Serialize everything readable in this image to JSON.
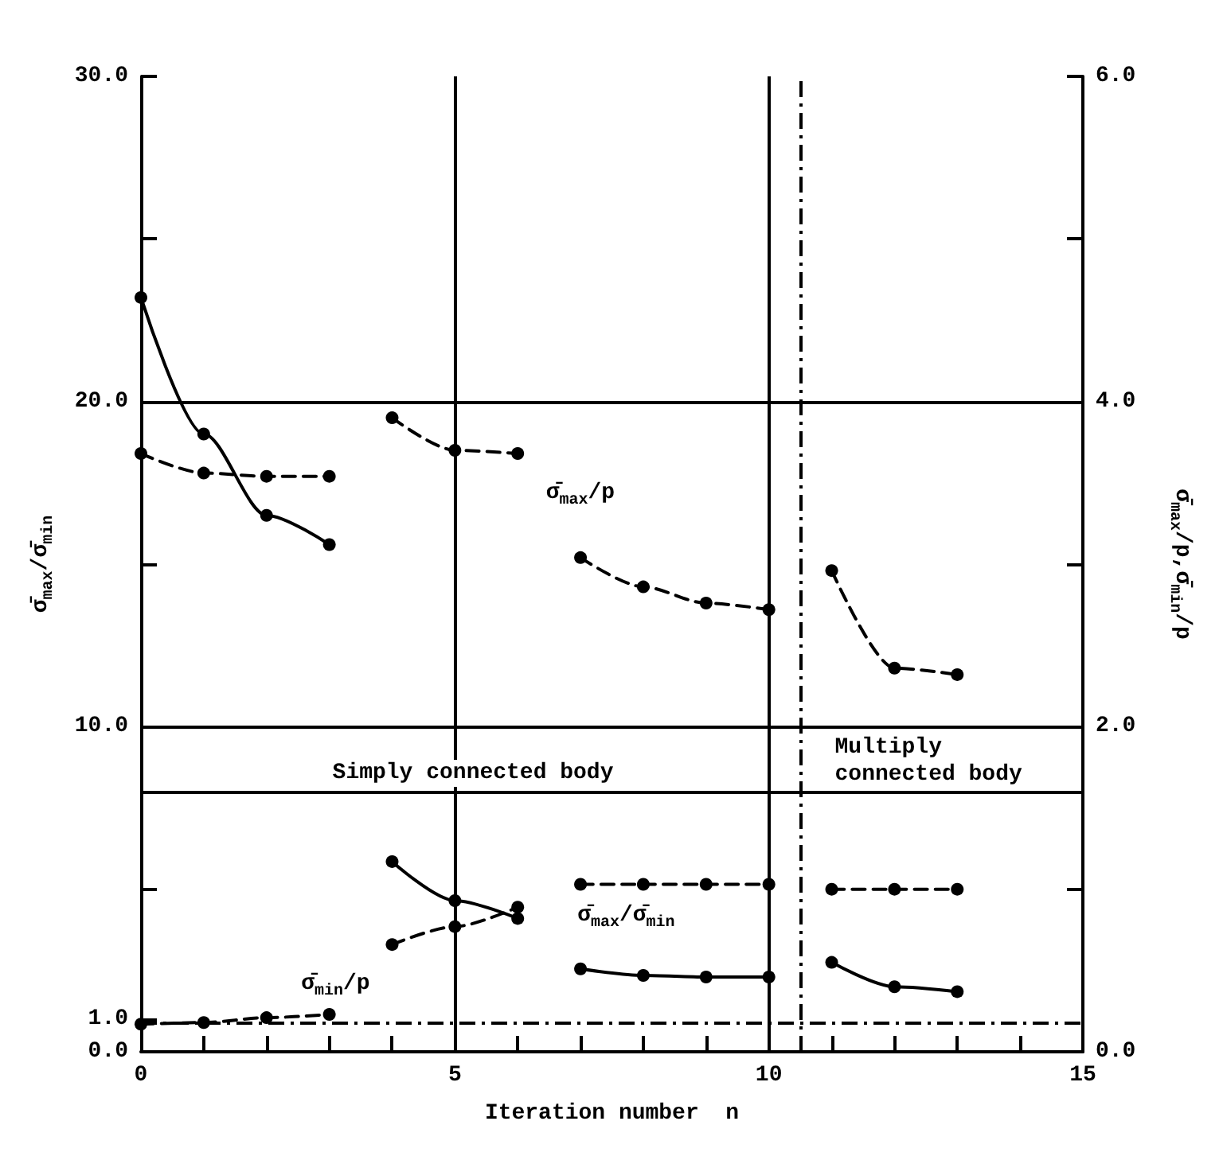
{
  "chart_data": {
    "type": "line",
    "xlabel": "Iteration number  n",
    "ylabel": "σ̄$_{max}$/σ̄$_{min}$",
    "y2label": "σ̄$_{max}$/p,σ̄$_{min}$/p",
    "xlim": [
      0,
      15
    ],
    "xticks": [
      0,
      {
        "value": 1,
        "label": null
      },
      {
        "value": 2,
        "label": null
      },
      {
        "value": 3,
        "label": null
      },
      {
        "value": 4,
        "label": null
      },
      5,
      {
        "value": 6,
        "label": null
      },
      {
        "value": 7,
        "label": null
      },
      {
        "value": 8,
        "label": null
      },
      {
        "value": 9,
        "label": null
      },
      10,
      {
        "value": 11,
        "label": null
      },
      {
        "value": 12,
        "label": null
      },
      {
        "value": 13,
        "label": null
      },
      {
        "value": 14,
        "label": null
      },
      15
    ],
    "ylim": [
      0,
      30
    ],
    "yticks": [
      {
        "value": 0,
        "label": "0.0"
      },
      {
        "value": 1,
        "label": "1.0"
      },
      {
        "value": 5,
        "label": null
      },
      {
        "value": 10,
        "label": "10.0"
      },
      {
        "value": 15,
        "label": null
      },
      {
        "value": 20,
        "label": "20.0"
      },
      {
        "value": 25,
        "label": null
      },
      {
        "value": 30,
        "label": "30.0"
      }
    ],
    "y2lim": [
      0,
      6
    ],
    "y2ticks": [
      {
        "value": 0,
        "label": "0.0"
      },
      {
        "value": 1,
        "label": null
      },
      {
        "value": 2,
        "label": "2.0"
      },
      {
        "value": 3,
        "label": null
      },
      {
        "value": 4,
        "label": "4.0"
      },
      {
        "value": 5,
        "label": null
      },
      {
        "value": 6,
        "label": "6.0"
      }
    ],
    "grid": false,
    "marker": "circle",
    "series": [
      {
        "color": "#000000",
        "line_style": "solid",
        "x": [
          0,
          1,
          2,
          3
        ],
        "values": [
          23.2,
          19.0,
          16.5,
          15.6
        ]
      },
      {
        "color": "#000000",
        "line_style": "dashed",
        "axis": "y2",
        "x": [
          0,
          1,
          2,
          3
        ],
        "values": [
          3.68,
          3.56,
          3.54,
          3.54
        ]
      },
      {
        "color": "#000000",
        "line_style": "dashed",
        "axis": "y2",
        "x": [
          4,
          5,
          6
        ],
        "values": [
          3.9,
          3.7,
          3.68
        ]
      },
      {
        "color": "#000000",
        "line_style": "dashed",
        "axis": "y2",
        "x": [
          7,
          8,
          9,
          10
        ],
        "values": [
          3.04,
          2.86,
          2.76,
          2.72
        ]
      },
      {
        "color": "#000000",
        "line_style": "dashed",
        "axis": "y2",
        "x": [
          11,
          12,
          13
        ],
        "values": [
          2.96,
          2.36,
          2.32
        ]
      },
      {
        "color": "#000000",
        "line_style": "solid",
        "x": [
          4,
          5,
          6
        ],
        "values": [
          5.85,
          4.65,
          4.1
        ]
      },
      {
        "color": "#000000",
        "line_style": "dashed",
        "axis": "y2",
        "x": [
          4,
          5,
          6
        ],
        "values": [
          0.66,
          0.77,
          0.89
        ]
      },
      {
        "color": "#000000",
        "line_style": "dashed",
        "axis": "y2",
        "x": [
          7,
          8,
          9,
          10
        ],
        "values": [
          1.03,
          1.03,
          1.03,
          1.03
        ]
      },
      {
        "color": "#000000",
        "line_style": "dashed",
        "axis": "y2",
        "x": [
          11,
          12,
          13
        ],
        "values": [
          1.0,
          1.0,
          1.0
        ]
      },
      {
        "color": "#000000",
        "line_style": "solid",
        "x": [
          7,
          8,
          9,
          10
        ],
        "values": [
          2.55,
          2.35,
          2.3,
          2.3
        ]
      },
      {
        "color": "#000000",
        "line_style": "solid",
        "x": [
          11,
          12,
          13
        ],
        "values": [
          2.75,
          2.0,
          1.85
        ]
      },
      {
        "color": "#000000",
        "line_style": "dashed",
        "axis": "y2",
        "x": [
          0,
          1,
          2,
          3
        ],
        "values": [
          0.17,
          0.18,
          0.21,
          0.23
        ]
      }
    ],
    "ref_lines": [
      {
        "axis": "x",
        "value": 5,
        "color": "#000000",
        "line_style": "solid"
      },
      {
        "axis": "x",
        "value": 10,
        "color": "#000000",
        "line_style": "solid"
      },
      {
        "axis": "x",
        "value": 10.5,
        "color": "#000000",
        "line_style": "dashed"
      },
      {
        "axis": "y",
        "value": 10,
        "color": "#000000",
        "line_style": "solid"
      },
      {
        "axis": "y",
        "value": 20,
        "color": "#000000",
        "line_style": "solid"
      },
      {
        "axis": "y",
        "value": 8,
        "color": "#000000",
        "line_style": "solid"
      },
      {
        "axis": "y2",
        "value": 0.18,
        "color": "#000000",
        "line_style": "dashed"
      }
    ],
    "annotations": [
      "σ̄$_{max}$/p",
      "σ̄$_{min}$/p",
      "σ̄$_{max}$/σ̄$_{min}$",
      "Simply connected body",
      "Multiply\nconnected body"
    ]
  }
}
